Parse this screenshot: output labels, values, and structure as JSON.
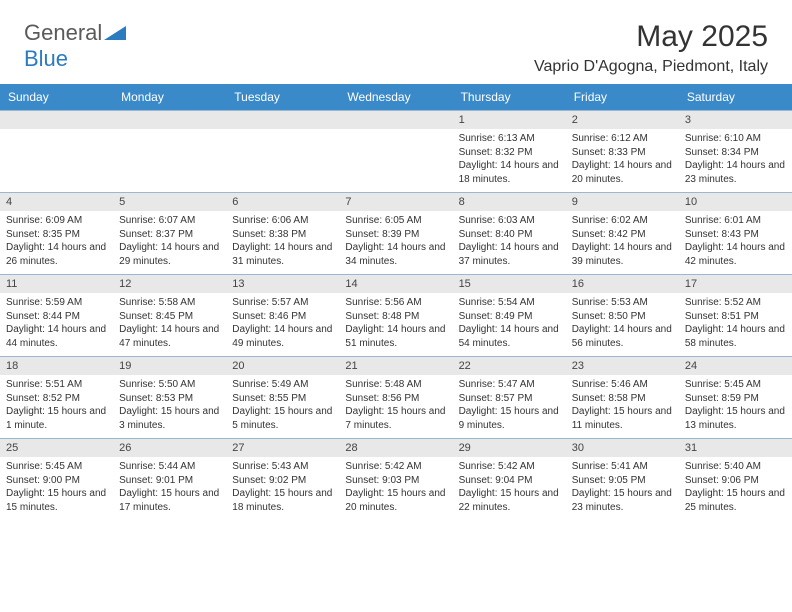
{
  "logo": {
    "general": "General",
    "blue": "Blue"
  },
  "title": "May 2025",
  "location": "Vaprio D'Agogna, Piedmont, Italy",
  "colors": {
    "header_bg": "#3a89c9",
    "header_text": "#ffffff",
    "daynum_bg": "#e8e8e8",
    "row_border": "#9bb8d3",
    "text": "#333333",
    "logo_gray": "#5a5a5a",
    "logo_blue": "#2b7bbf"
  },
  "weekdays": [
    "Sunday",
    "Monday",
    "Tuesday",
    "Wednesday",
    "Thursday",
    "Friday",
    "Saturday"
  ],
  "weeks": [
    [
      null,
      null,
      null,
      null,
      {
        "n": "1",
        "sr": "Sunrise: 6:13 AM",
        "ss": "Sunset: 8:32 PM",
        "dl": "Daylight: 14 hours and 18 minutes."
      },
      {
        "n": "2",
        "sr": "Sunrise: 6:12 AM",
        "ss": "Sunset: 8:33 PM",
        "dl": "Daylight: 14 hours and 20 minutes."
      },
      {
        "n": "3",
        "sr": "Sunrise: 6:10 AM",
        "ss": "Sunset: 8:34 PM",
        "dl": "Daylight: 14 hours and 23 minutes."
      }
    ],
    [
      {
        "n": "4",
        "sr": "Sunrise: 6:09 AM",
        "ss": "Sunset: 8:35 PM",
        "dl": "Daylight: 14 hours and 26 minutes."
      },
      {
        "n": "5",
        "sr": "Sunrise: 6:07 AM",
        "ss": "Sunset: 8:37 PM",
        "dl": "Daylight: 14 hours and 29 minutes."
      },
      {
        "n": "6",
        "sr": "Sunrise: 6:06 AM",
        "ss": "Sunset: 8:38 PM",
        "dl": "Daylight: 14 hours and 31 minutes."
      },
      {
        "n": "7",
        "sr": "Sunrise: 6:05 AM",
        "ss": "Sunset: 8:39 PM",
        "dl": "Daylight: 14 hours and 34 minutes."
      },
      {
        "n": "8",
        "sr": "Sunrise: 6:03 AM",
        "ss": "Sunset: 8:40 PM",
        "dl": "Daylight: 14 hours and 37 minutes."
      },
      {
        "n": "9",
        "sr": "Sunrise: 6:02 AM",
        "ss": "Sunset: 8:42 PM",
        "dl": "Daylight: 14 hours and 39 minutes."
      },
      {
        "n": "10",
        "sr": "Sunrise: 6:01 AM",
        "ss": "Sunset: 8:43 PM",
        "dl": "Daylight: 14 hours and 42 minutes."
      }
    ],
    [
      {
        "n": "11",
        "sr": "Sunrise: 5:59 AM",
        "ss": "Sunset: 8:44 PM",
        "dl": "Daylight: 14 hours and 44 minutes."
      },
      {
        "n": "12",
        "sr": "Sunrise: 5:58 AM",
        "ss": "Sunset: 8:45 PM",
        "dl": "Daylight: 14 hours and 47 minutes."
      },
      {
        "n": "13",
        "sr": "Sunrise: 5:57 AM",
        "ss": "Sunset: 8:46 PM",
        "dl": "Daylight: 14 hours and 49 minutes."
      },
      {
        "n": "14",
        "sr": "Sunrise: 5:56 AM",
        "ss": "Sunset: 8:48 PM",
        "dl": "Daylight: 14 hours and 51 minutes."
      },
      {
        "n": "15",
        "sr": "Sunrise: 5:54 AM",
        "ss": "Sunset: 8:49 PM",
        "dl": "Daylight: 14 hours and 54 minutes."
      },
      {
        "n": "16",
        "sr": "Sunrise: 5:53 AM",
        "ss": "Sunset: 8:50 PM",
        "dl": "Daylight: 14 hours and 56 minutes."
      },
      {
        "n": "17",
        "sr": "Sunrise: 5:52 AM",
        "ss": "Sunset: 8:51 PM",
        "dl": "Daylight: 14 hours and 58 minutes."
      }
    ],
    [
      {
        "n": "18",
        "sr": "Sunrise: 5:51 AM",
        "ss": "Sunset: 8:52 PM",
        "dl": "Daylight: 15 hours and 1 minute."
      },
      {
        "n": "19",
        "sr": "Sunrise: 5:50 AM",
        "ss": "Sunset: 8:53 PM",
        "dl": "Daylight: 15 hours and 3 minutes."
      },
      {
        "n": "20",
        "sr": "Sunrise: 5:49 AM",
        "ss": "Sunset: 8:55 PM",
        "dl": "Daylight: 15 hours and 5 minutes."
      },
      {
        "n": "21",
        "sr": "Sunrise: 5:48 AM",
        "ss": "Sunset: 8:56 PM",
        "dl": "Daylight: 15 hours and 7 minutes."
      },
      {
        "n": "22",
        "sr": "Sunrise: 5:47 AM",
        "ss": "Sunset: 8:57 PM",
        "dl": "Daylight: 15 hours and 9 minutes."
      },
      {
        "n": "23",
        "sr": "Sunrise: 5:46 AM",
        "ss": "Sunset: 8:58 PM",
        "dl": "Daylight: 15 hours and 11 minutes."
      },
      {
        "n": "24",
        "sr": "Sunrise: 5:45 AM",
        "ss": "Sunset: 8:59 PM",
        "dl": "Daylight: 15 hours and 13 minutes."
      }
    ],
    [
      {
        "n": "25",
        "sr": "Sunrise: 5:45 AM",
        "ss": "Sunset: 9:00 PM",
        "dl": "Daylight: 15 hours and 15 minutes."
      },
      {
        "n": "26",
        "sr": "Sunrise: 5:44 AM",
        "ss": "Sunset: 9:01 PM",
        "dl": "Daylight: 15 hours and 17 minutes."
      },
      {
        "n": "27",
        "sr": "Sunrise: 5:43 AM",
        "ss": "Sunset: 9:02 PM",
        "dl": "Daylight: 15 hours and 18 minutes."
      },
      {
        "n": "28",
        "sr": "Sunrise: 5:42 AM",
        "ss": "Sunset: 9:03 PM",
        "dl": "Daylight: 15 hours and 20 minutes."
      },
      {
        "n": "29",
        "sr": "Sunrise: 5:42 AM",
        "ss": "Sunset: 9:04 PM",
        "dl": "Daylight: 15 hours and 22 minutes."
      },
      {
        "n": "30",
        "sr": "Sunrise: 5:41 AM",
        "ss": "Sunset: 9:05 PM",
        "dl": "Daylight: 15 hours and 23 minutes."
      },
      {
        "n": "31",
        "sr": "Sunrise: 5:40 AM",
        "ss": "Sunset: 9:06 PM",
        "dl": "Daylight: 15 hours and 25 minutes."
      }
    ]
  ]
}
